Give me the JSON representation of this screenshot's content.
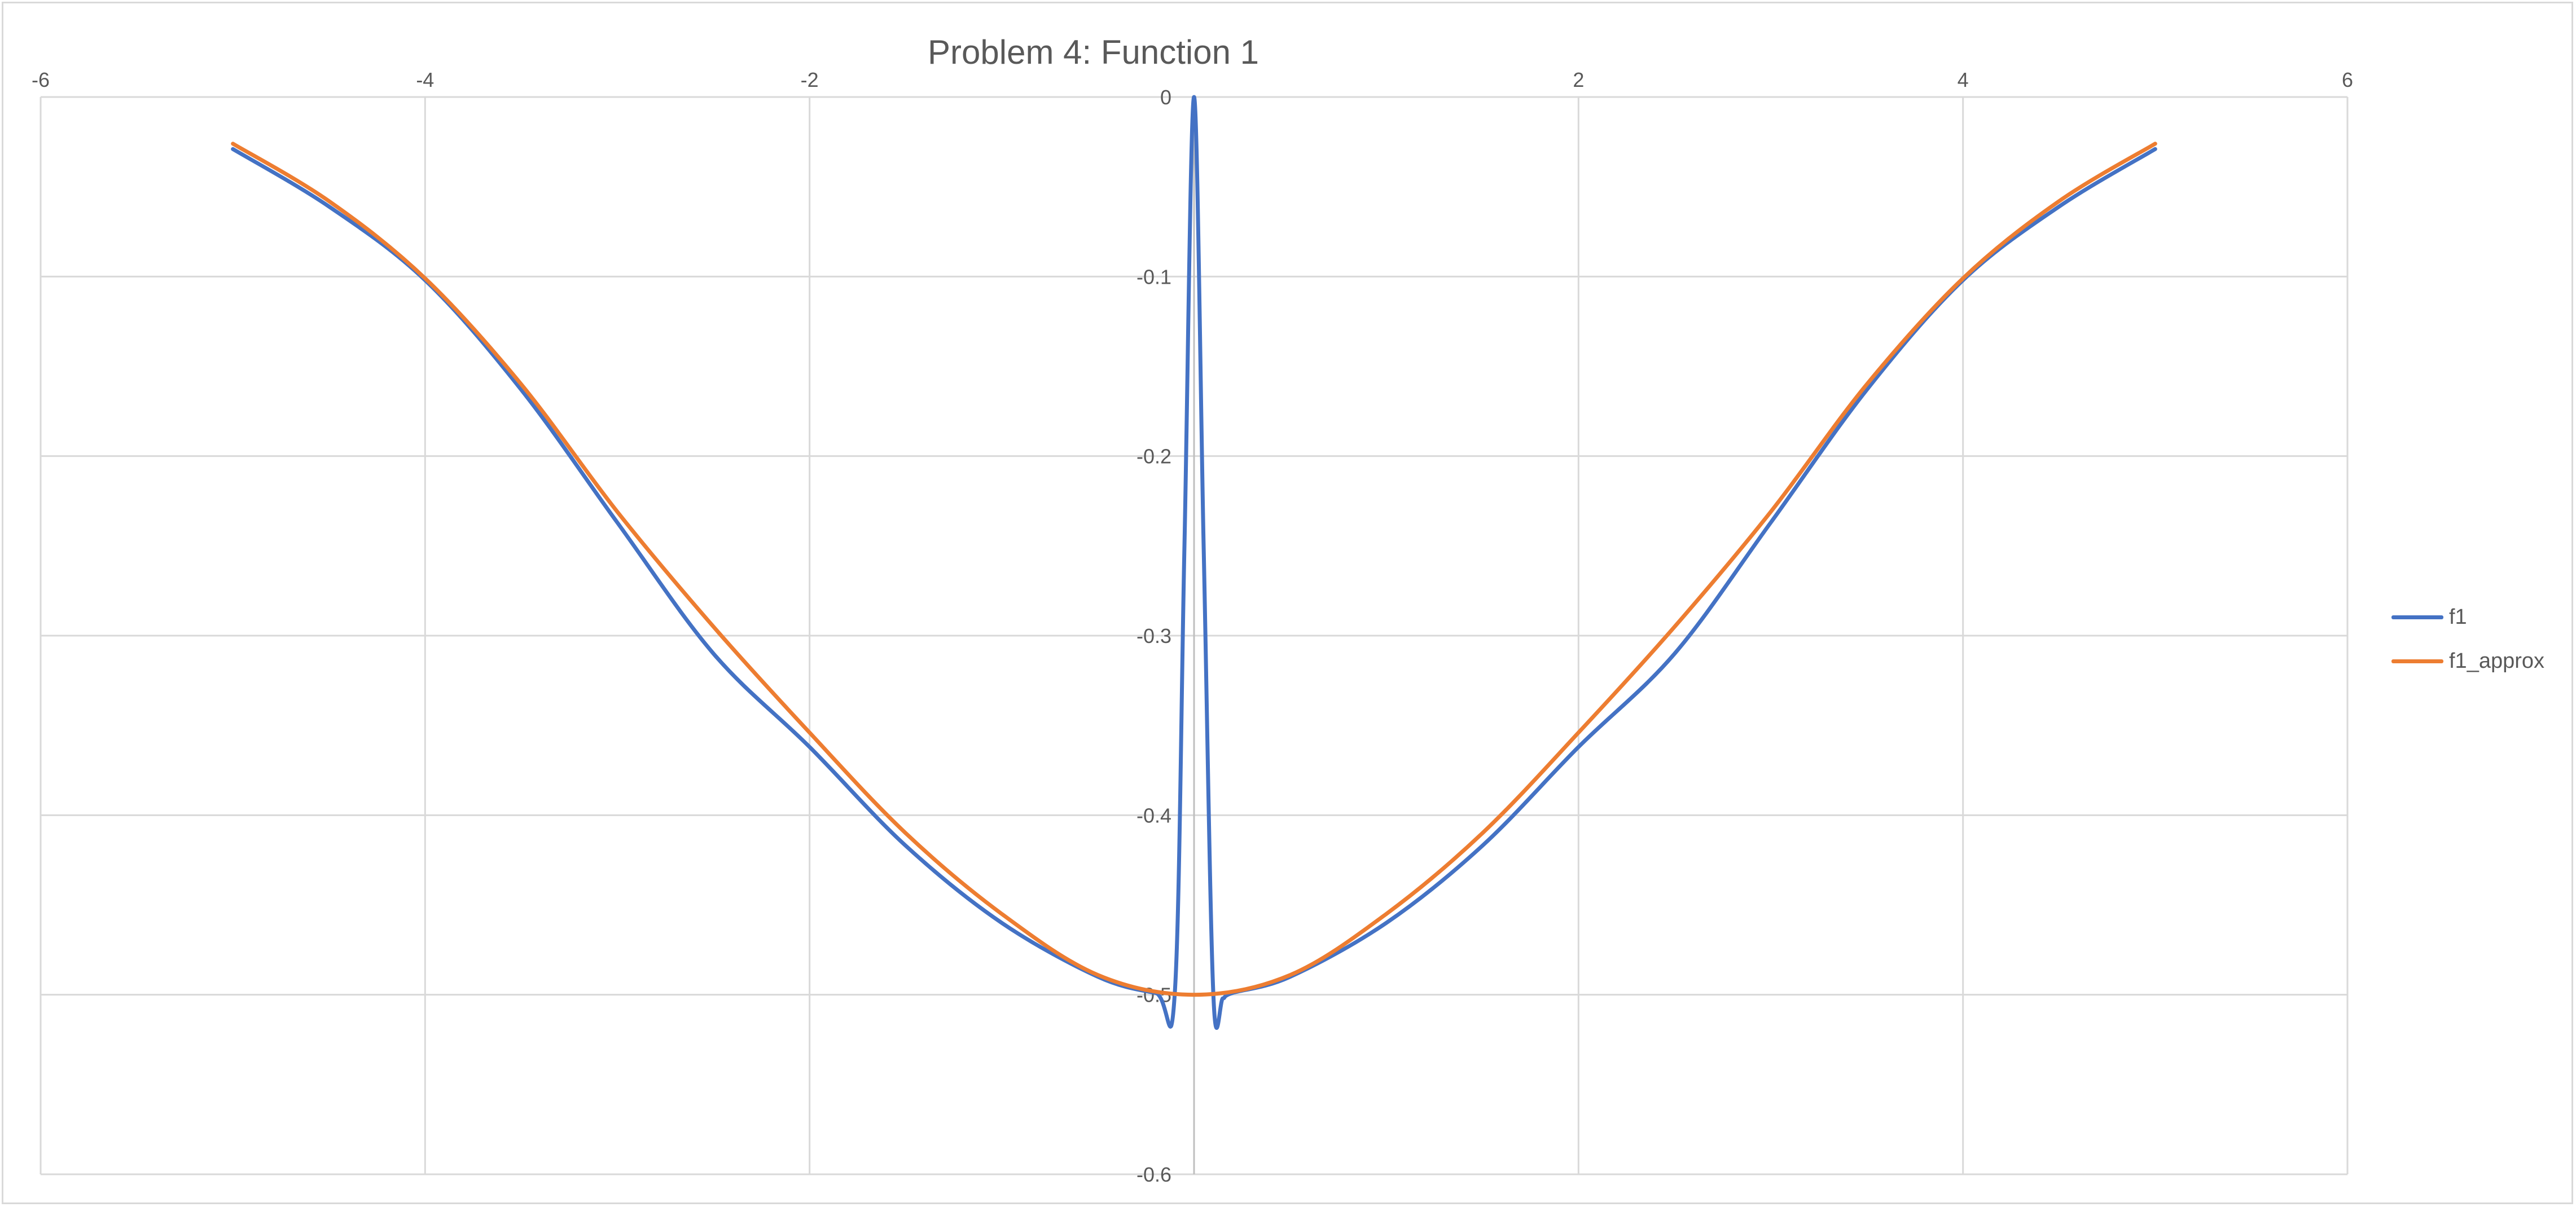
{
  "chart_data": {
    "type": "line",
    "title": "Problem 4: Function 1",
    "xlabel": "",
    "ylabel": "",
    "xlim": [
      -6,
      6
    ],
    "ylim": [
      -0.6,
      0
    ],
    "x_ticks": [
      -6,
      -4,
      -2,
      0,
      2,
      4,
      6
    ],
    "y_ticks": [
      0,
      -0.1,
      -0.2,
      -0.3,
      -0.4,
      -0.5,
      -0.6
    ],
    "x_tick_labels": [
      "-6",
      "-4",
      "-2",
      "",
      "2",
      "4",
      "6"
    ],
    "y_tick_labels": [
      "0",
      "-0.1",
      "-0.2",
      "-0.3",
      "-0.4",
      "-0.5",
      "-0.6"
    ],
    "grid": true,
    "legend_position": "right",
    "series": [
      {
        "name": "f1",
        "color": "#4472c4",
        "x": [
          -5,
          -4.5,
          -4,
          -3.5,
          -3,
          -2.5,
          -2,
          -1.5,
          -1,
          -0.5,
          -0.2,
          -0.1,
          -0.05,
          0,
          0.05,
          0.1,
          0.15,
          0.2,
          0.5,
          1,
          1.5,
          2,
          2.5,
          3,
          3.5,
          4,
          4.5,
          5
        ],
        "y": [
          -0.029,
          -0.061,
          -0.102,
          -0.163,
          -0.237,
          -0.31,
          -0.362,
          -0.417,
          -0.46,
          -0.49,
          -0.499,
          -0.499,
          -0.25,
          0,
          -0.25,
          -0.499,
          -0.502,
          -0.499,
          -0.49,
          -0.46,
          -0.417,
          -0.362,
          -0.31,
          -0.237,
          -0.163,
          -0.102,
          -0.061,
          -0.029
        ]
      },
      {
        "name": "f1_approx",
        "color": "#ed7d31",
        "x": [
          -5,
          -4.5,
          -4,
          -3.5,
          -3,
          -2.5,
          -2,
          -1.5,
          -1,
          -0.5,
          0,
          0.5,
          1,
          1.5,
          2,
          2.5,
          3,
          3.5,
          4,
          4.5,
          5
        ],
        "y": [
          -0.026,
          -0.058,
          -0.101,
          -0.16,
          -0.231,
          -0.295,
          -0.354,
          -0.41,
          -0.455,
          -0.489,
          -0.5,
          -0.489,
          -0.455,
          -0.41,
          -0.354,
          -0.295,
          -0.231,
          -0.16,
          -0.101,
          -0.058,
          -0.026
        ]
      }
    ]
  }
}
